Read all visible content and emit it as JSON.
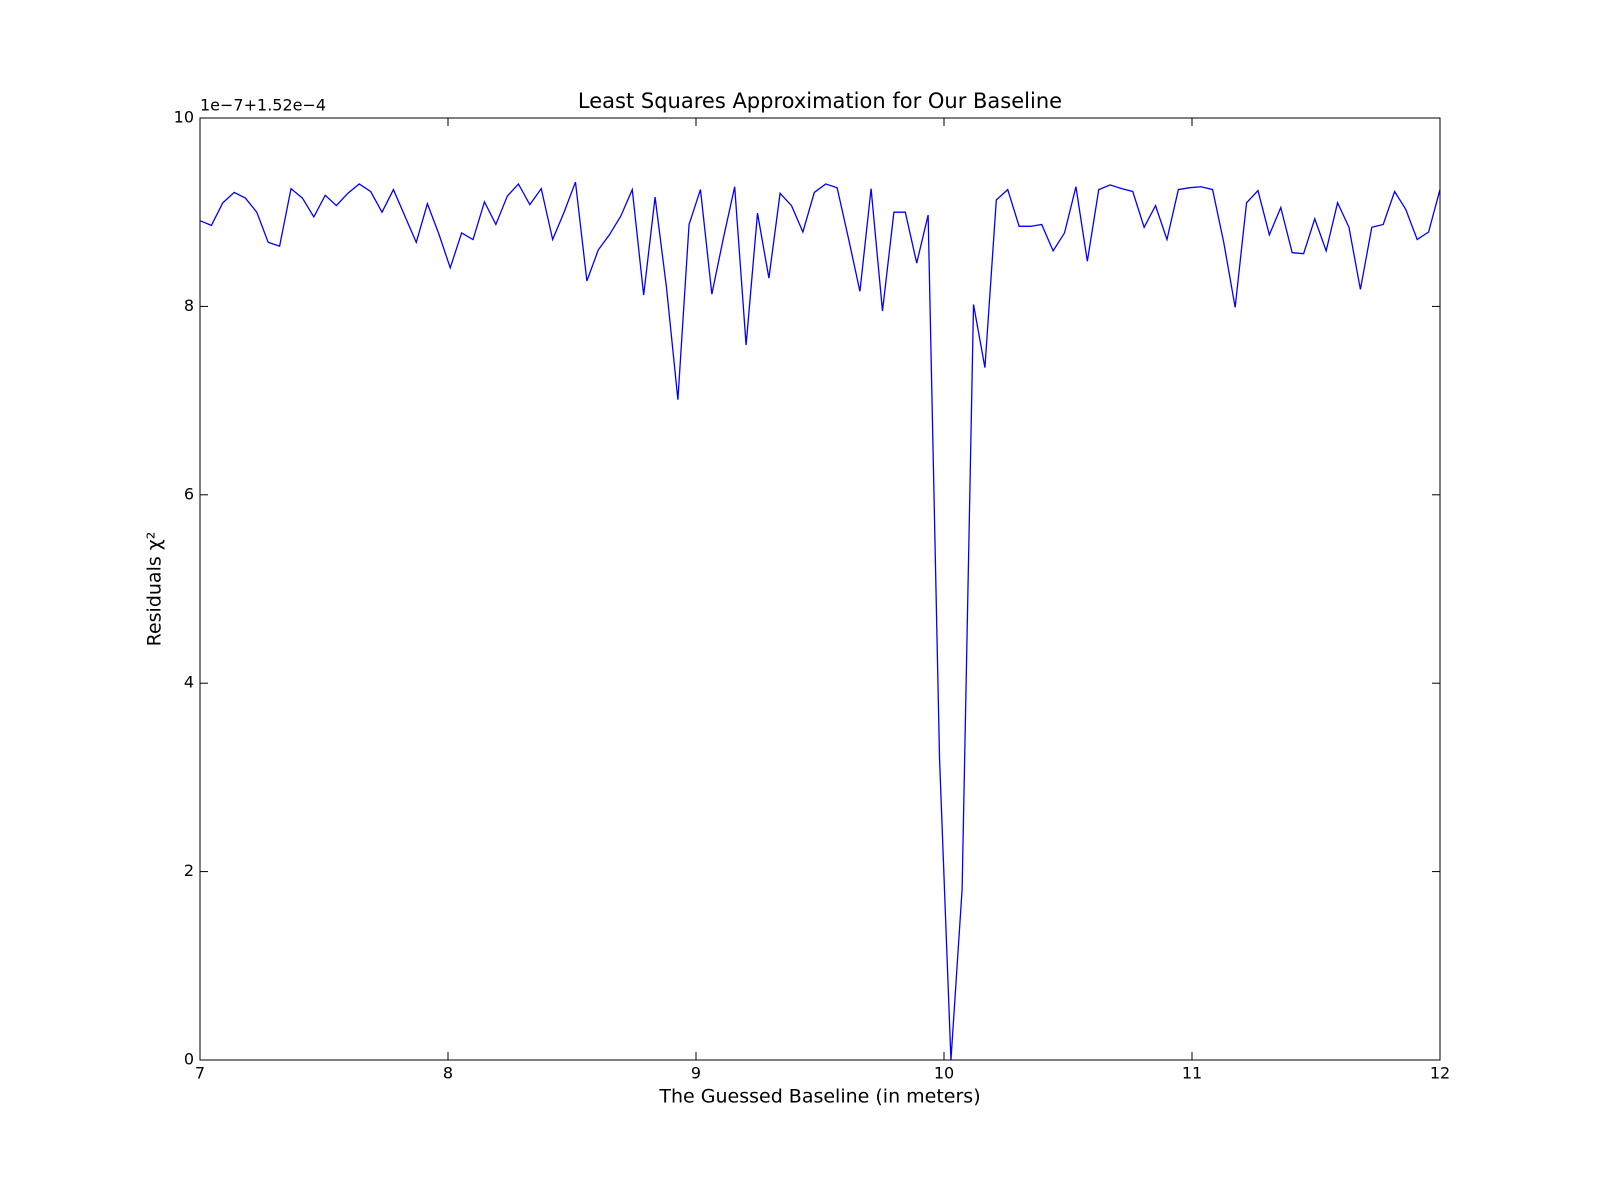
{
  "chart_data": {
    "type": "line",
    "title": "Least Squares Approximation for Our Baseline",
    "x_label": "The Guessed Baseline (in meters)",
    "y_label": "Residuals χ²",
    "y_offset_label": "1e−7+1.52e−4",
    "xlim": [
      7,
      12
    ],
    "xticks": [
      7,
      8,
      9,
      10,
      11,
      12
    ],
    "ylim": [
      0,
      10
    ],
    "yticks": [
      0,
      2,
      4,
      6,
      8,
      10
    ],
    "grid": false,
    "x": [
      7.0,
      7.046,
      7.092,
      7.138,
      7.183,
      7.229,
      7.275,
      7.321,
      7.367,
      7.413,
      7.459,
      7.505,
      7.55,
      7.596,
      7.642,
      7.688,
      7.734,
      7.78,
      7.826,
      7.872,
      7.917,
      7.963,
      8.009,
      8.055,
      8.101,
      8.147,
      8.193,
      8.239,
      8.284,
      8.33,
      8.376,
      8.422,
      8.468,
      8.514,
      8.56,
      8.606,
      8.651,
      8.697,
      8.743,
      8.789,
      8.835,
      8.881,
      8.927,
      8.972,
      9.018,
      9.064,
      9.11,
      9.156,
      9.202,
      9.248,
      9.294,
      9.339,
      9.385,
      9.431,
      9.477,
      9.523,
      9.569,
      9.615,
      9.661,
      9.706,
      9.752,
      9.798,
      9.844,
      9.89,
      9.936,
      9.982,
      10.028,
      10.073,
      10.119,
      10.165,
      10.211,
      10.257,
      10.303,
      10.349,
      10.394,
      10.44,
      10.486,
      10.532,
      10.578,
      10.624,
      10.67,
      10.716,
      10.761,
      10.807,
      10.853,
      10.899,
      10.945,
      10.991,
      11.037,
      11.083,
      11.128,
      11.174,
      11.22,
      11.266,
      11.312,
      11.358,
      11.404,
      11.45,
      11.495,
      11.541,
      11.587,
      11.633,
      11.679,
      11.725,
      11.771,
      11.817,
      11.862,
      11.908,
      11.954,
      12.0
    ],
    "series": [
      {
        "name": "residuals",
        "color": "#0000ff",
        "values": [
          8.91,
          8.86,
          9.1,
          9.21,
          9.15,
          9.0,
          8.68,
          8.64,
          9.25,
          9.15,
          8.95,
          9.18,
          9.07,
          9.2,
          9.3,
          9.22,
          9.0,
          9.24,
          8.96,
          8.68,
          9.09,
          8.77,
          8.41,
          8.78,
          8.71,
          9.11,
          8.87,
          9.17,
          9.3,
          9.08,
          9.25,
          8.71,
          9.0,
          9.32,
          8.27,
          8.6,
          8.76,
          8.96,
          9.24,
          8.12,
          9.16,
          8.2,
          7.01,
          8.87,
          9.24,
          8.13,
          8.72,
          9.27,
          7.59,
          8.99,
          8.3,
          9.2,
          9.07,
          8.79,
          9.21,
          9.3,
          9.26,
          8.72,
          8.16,
          9.25,
          7.95,
          9.0,
          9.0,
          8.46,
          8.97,
          3.2,
          0.0,
          1.81,
          8.02,
          7.35,
          9.13,
          9.24,
          8.85,
          8.85,
          8.87,
          8.59,
          8.78,
          9.27,
          8.48,
          9.24,
          9.29,
          9.25,
          9.22,
          8.84,
          9.07,
          8.71,
          9.24,
          9.26,
          9.27,
          9.24,
          8.68,
          7.99,
          9.1,
          9.23,
          8.76,
          9.05,
          8.57,
          8.56,
          8.93,
          8.59,
          9.1,
          8.84,
          8.18,
          8.84,
          8.87,
          9.22,
          9.03,
          8.71,
          8.79,
          9.24
        ]
      }
    ]
  }
}
